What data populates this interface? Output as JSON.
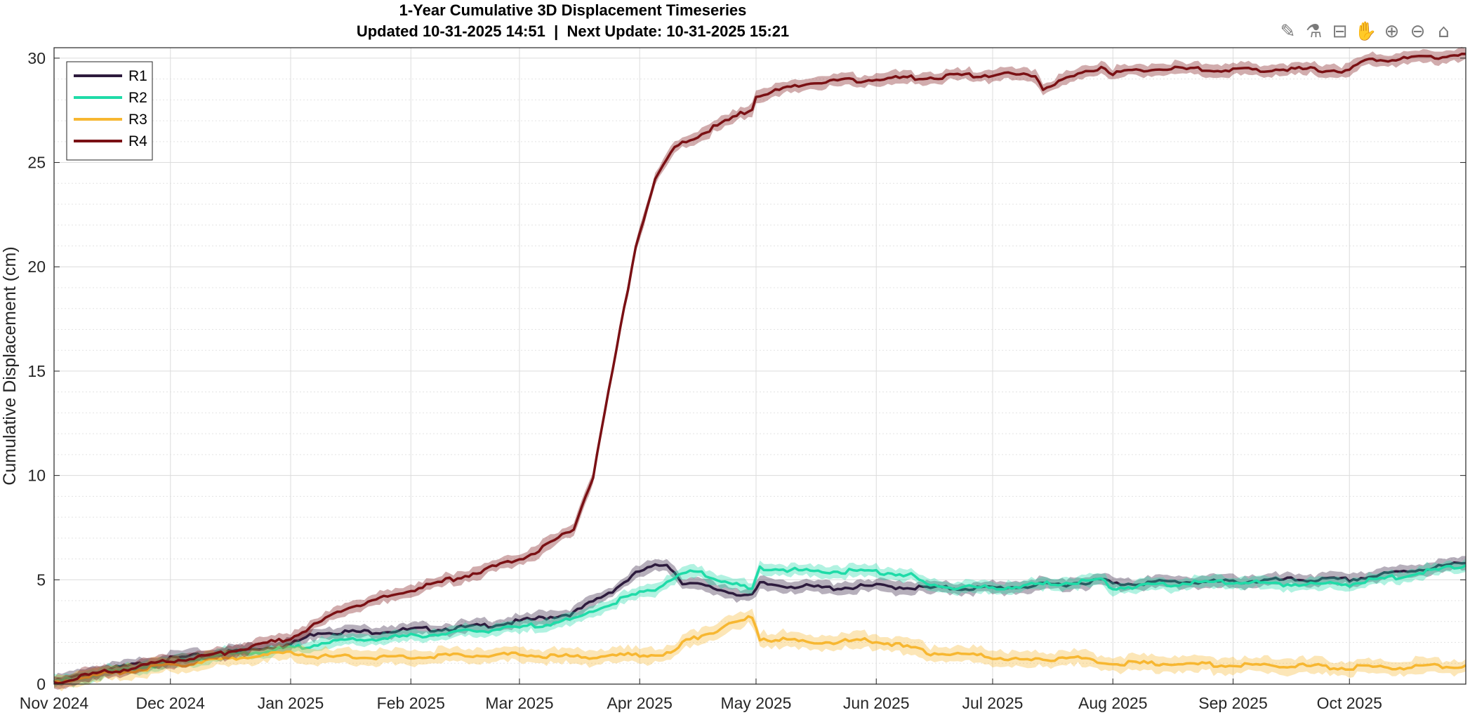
{
  "title": {
    "line1": "1-Year Cumulative 3D Displacement Timeseries",
    "line2": "Updated 10-31-2025 14:51  |  Next Update: 10-31-2025 15:21"
  },
  "toolbar": [
    {
      "name": "brush-icon",
      "glyph": "✎"
    },
    {
      "name": "data-cursor-icon",
      "glyph": "⚗"
    },
    {
      "name": "datatip-icon",
      "glyph": "⊟"
    },
    {
      "name": "pan-hand-icon",
      "glyph": "✋"
    },
    {
      "name": "zoom-in-icon",
      "glyph": "⊕"
    },
    {
      "name": "zoom-out-icon",
      "glyph": "⊖"
    },
    {
      "name": "home-icon",
      "glyph": "⌂"
    }
  ],
  "chart_data": {
    "type": "line",
    "title": "1-Year Cumulative 3D Displacement Timeseries",
    "subtitle": "Updated 10-31-2025 14:51  |  Next Update: 10-31-2025 15:21",
    "xlabel": "",
    "ylabel": "Cumulative Displacement (cm)",
    "xlim": [
      "2024-11-01",
      "2025-10-31"
    ],
    "ylim": [
      0,
      30.5
    ],
    "x_ticks": [
      {
        "date": "2024-11-01",
        "label": "Nov 2024"
      },
      {
        "date": "2024-12-01",
        "label": "Dec 2024"
      },
      {
        "date": "2025-01-01",
        "label": "Jan 2025"
      },
      {
        "date": "2025-02-01",
        "label": "Feb 2025"
      },
      {
        "date": "2025-03-01",
        "label": "Mar 2025"
      },
      {
        "date": "2025-04-01",
        "label": "Apr 2025"
      },
      {
        "date": "2025-05-01",
        "label": "May 2025"
      },
      {
        "date": "2025-06-01",
        "label": "Jun 2025"
      },
      {
        "date": "2025-07-01",
        "label": "Jul 2025"
      },
      {
        "date": "2025-08-01",
        "label": "Aug 2025"
      },
      {
        "date": "2025-09-01",
        "label": "Sep 2025"
      },
      {
        "date": "2025-10-01",
        "label": "Oct 2025"
      }
    ],
    "y_ticks": [
      0,
      5,
      10,
      15,
      20,
      25,
      30
    ],
    "grid": true,
    "minor_grid": true,
    "legend_position": "top-left",
    "series": [
      {
        "name": "R1",
        "color": "#2d1b3d",
        "points": [
          [
            "2024-11-01",
            0.1
          ],
          [
            "2024-11-15",
            0.7
          ],
          [
            "2024-12-01",
            1.2
          ],
          [
            "2024-12-15",
            1.5
          ],
          [
            "2025-01-01",
            1.9
          ],
          [
            "2025-01-08",
            2.5
          ],
          [
            "2025-01-20",
            2.5
          ],
          [
            "2025-02-01",
            2.6
          ],
          [
            "2025-02-15",
            2.7
          ],
          [
            "2025-03-01",
            3.0
          ],
          [
            "2025-03-15",
            3.4
          ],
          [
            "2025-03-25",
            4.5
          ],
          [
            "2025-04-01",
            5.4
          ],
          [
            "2025-04-08",
            5.8
          ],
          [
            "2025-04-12",
            4.9
          ],
          [
            "2025-04-30",
            4.2
          ],
          [
            "2025-05-02",
            4.8
          ],
          [
            "2025-05-20",
            4.6
          ],
          [
            "2025-06-01",
            4.7
          ],
          [
            "2025-06-15",
            4.6
          ],
          [
            "2025-07-01",
            4.6
          ],
          [
            "2025-07-10",
            4.7
          ],
          [
            "2025-07-20",
            4.8
          ],
          [
            "2025-07-30",
            5.0
          ],
          [
            "2025-08-01",
            4.8
          ],
          [
            "2025-08-15",
            4.9
          ],
          [
            "2025-09-01",
            4.9
          ],
          [
            "2025-09-15",
            5.0
          ],
          [
            "2025-10-01",
            5.0
          ],
          [
            "2025-10-15",
            5.4
          ],
          [
            "2025-10-31",
            5.8
          ]
        ]
      },
      {
        "name": "R2",
        "color": "#1fdba8",
        "points": [
          [
            "2024-11-01",
            0.1
          ],
          [
            "2024-11-15",
            0.6
          ],
          [
            "2024-12-01",
            1.0
          ],
          [
            "2024-12-15",
            1.4
          ],
          [
            "2025-01-01",
            1.7
          ],
          [
            "2025-01-10",
            2.0
          ],
          [
            "2025-02-01",
            2.3
          ],
          [
            "2025-02-15",
            2.5
          ],
          [
            "2025-03-01",
            2.7
          ],
          [
            "2025-03-15",
            3.1
          ],
          [
            "2025-03-25",
            3.9
          ],
          [
            "2025-04-05",
            4.6
          ],
          [
            "2025-04-12",
            5.3
          ],
          [
            "2025-04-15",
            5.4
          ],
          [
            "2025-04-30",
            4.5
          ],
          [
            "2025-05-02",
            5.6
          ],
          [
            "2025-05-15",
            5.4
          ],
          [
            "2025-06-01",
            5.4
          ],
          [
            "2025-06-10",
            5.2
          ],
          [
            "2025-06-15",
            4.7
          ],
          [
            "2025-07-01",
            4.6
          ],
          [
            "2025-07-15",
            4.8
          ],
          [
            "2025-07-29",
            5.0
          ],
          [
            "2025-08-01",
            4.6
          ],
          [
            "2025-08-15",
            4.8
          ],
          [
            "2025-09-01",
            4.9
          ],
          [
            "2025-09-15",
            4.8
          ],
          [
            "2025-10-01",
            4.8
          ],
          [
            "2025-10-15",
            5.2
          ],
          [
            "2025-10-31",
            5.7
          ]
        ]
      },
      {
        "name": "R3",
        "color": "#f7b731",
        "points": [
          [
            "2024-11-01",
            0.1
          ],
          [
            "2024-11-15",
            0.5
          ],
          [
            "2024-12-01",
            0.9
          ],
          [
            "2024-12-15",
            1.2
          ],
          [
            "2025-01-01",
            1.5
          ],
          [
            "2025-01-10",
            1.3
          ],
          [
            "2025-02-01",
            1.3
          ],
          [
            "2025-02-15",
            1.4
          ],
          [
            "2025-03-01",
            1.4
          ],
          [
            "2025-03-15",
            1.3
          ],
          [
            "2025-04-01",
            1.4
          ],
          [
            "2025-04-10",
            1.5
          ],
          [
            "2025-04-12",
            2.0
          ],
          [
            "2025-04-30",
            3.2
          ],
          [
            "2025-05-02",
            2.2
          ],
          [
            "2025-05-15",
            2.0
          ],
          [
            "2025-06-01",
            2.1
          ],
          [
            "2025-06-15",
            1.5
          ],
          [
            "2025-07-01",
            1.3
          ],
          [
            "2025-07-10",
            1.1
          ],
          [
            "2025-07-20",
            1.3
          ],
          [
            "2025-08-01",
            1.0
          ],
          [
            "2025-08-15",
            1.0
          ],
          [
            "2025-09-01",
            0.9
          ],
          [
            "2025-09-15",
            0.9
          ],
          [
            "2025-10-01",
            0.8
          ],
          [
            "2025-10-15",
            0.8
          ],
          [
            "2025-10-31",
            0.9
          ]
        ]
      },
      {
        "name": "R4",
        "color": "#7a1014",
        "points": [
          [
            "2024-11-01",
            0.1
          ],
          [
            "2024-11-15",
            0.6
          ],
          [
            "2024-12-01",
            1.1
          ],
          [
            "2024-12-15",
            1.5
          ],
          [
            "2025-01-01",
            2.2
          ],
          [
            "2025-01-15",
            3.6
          ],
          [
            "2025-02-01",
            4.5
          ],
          [
            "2025-02-15",
            5.2
          ],
          [
            "2025-03-01",
            6.0
          ],
          [
            "2025-03-10",
            6.8
          ],
          [
            "2025-03-15",
            7.5
          ],
          [
            "2025-03-20",
            10.0
          ],
          [
            "2025-03-25",
            15.0
          ],
          [
            "2025-03-31",
            21.0
          ],
          [
            "2025-04-05",
            24.2
          ],
          [
            "2025-04-10",
            25.7
          ],
          [
            "2025-04-13",
            26.0
          ],
          [
            "2025-04-30",
            27.6
          ],
          [
            "2025-05-01",
            28.2
          ],
          [
            "2025-05-15",
            28.8
          ],
          [
            "2025-06-01",
            29.0
          ],
          [
            "2025-06-15",
            29.1
          ],
          [
            "2025-07-01",
            29.2
          ],
          [
            "2025-07-12",
            29.2
          ],
          [
            "2025-07-14",
            28.6
          ],
          [
            "2025-07-29",
            29.6
          ],
          [
            "2025-08-01",
            29.3
          ],
          [
            "2025-08-15",
            29.5
          ],
          [
            "2025-09-01",
            29.4
          ],
          [
            "2025-09-15",
            29.5
          ],
          [
            "2025-10-01",
            29.4
          ],
          [
            "2025-10-05",
            29.9
          ],
          [
            "2025-10-20",
            30.0
          ],
          [
            "2025-10-31",
            30.2
          ]
        ]
      }
    ]
  }
}
